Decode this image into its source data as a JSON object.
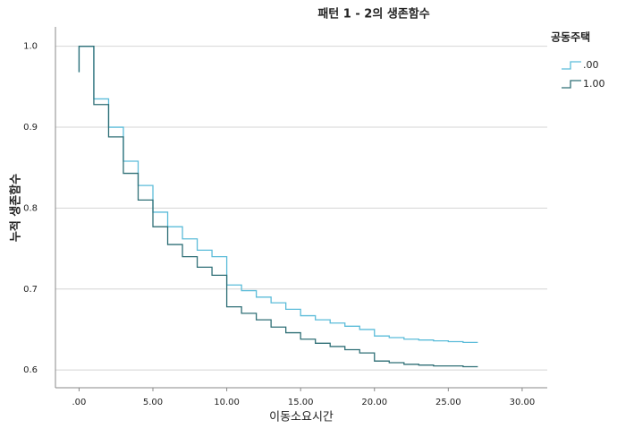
{
  "chart_data": {
    "type": "step",
    "title": "패턴 1 - 2의 생존함수",
    "x_label": "이동소요시간",
    "y_label": "누적 생존함수",
    "legend_title": "공동주택",
    "legend": "right",
    "grid": true,
    "x": [
      0,
      0,
      1,
      2,
      3,
      4,
      5,
      6,
      7,
      8,
      9,
      10,
      11,
      12,
      13,
      14,
      15,
      16,
      17,
      18,
      19,
      20,
      21,
      22,
      23,
      24,
      25,
      26,
      27
    ],
    "series": [
      {
        "name": ".00",
        "color": "#5bbcd9",
        "values": [
          0.968,
          1.0,
          0.935,
          0.9,
          0.858,
          0.828,
          0.795,
          0.777,
          0.762,
          0.748,
          0.74,
          0.705,
          0.698,
          0.69,
          0.683,
          0.675,
          0.667,
          0.662,
          0.658,
          0.654,
          0.65,
          0.642,
          0.64,
          0.638,
          0.637,
          0.636,
          0.635,
          0.634,
          0.634
        ]
      },
      {
        "name": "1.00",
        "color": "#2f6f76",
        "values": [
          0.968,
          1.0,
          0.928,
          0.888,
          0.843,
          0.81,
          0.777,
          0.755,
          0.74,
          0.727,
          0.717,
          0.678,
          0.67,
          0.662,
          0.653,
          0.646,
          0.638,
          0.633,
          0.629,
          0.625,
          0.621,
          0.611,
          0.609,
          0.607,
          0.606,
          0.605,
          0.605,
          0.604,
          0.604
        ]
      }
    ],
    "xlim": [
      -1.6,
      31.7
    ],
    "ylim": [
      0.578,
      1.024
    ],
    "xticks": [
      {
        "value": 0,
        "label": ".00"
      },
      {
        "value": 5,
        "label": "5.00"
      },
      {
        "value": 10,
        "label": "10.00"
      },
      {
        "value": 15,
        "label": "15.00"
      },
      {
        "value": 20,
        "label": "20.00"
      },
      {
        "value": 25,
        "label": "25.00"
      },
      {
        "value": 30,
        "label": "30.00"
      }
    ],
    "yticks": [
      0.6,
      0.7,
      0.8,
      0.9,
      {
        "value": 1.0,
        "label": "1.0"
      }
    ]
  }
}
